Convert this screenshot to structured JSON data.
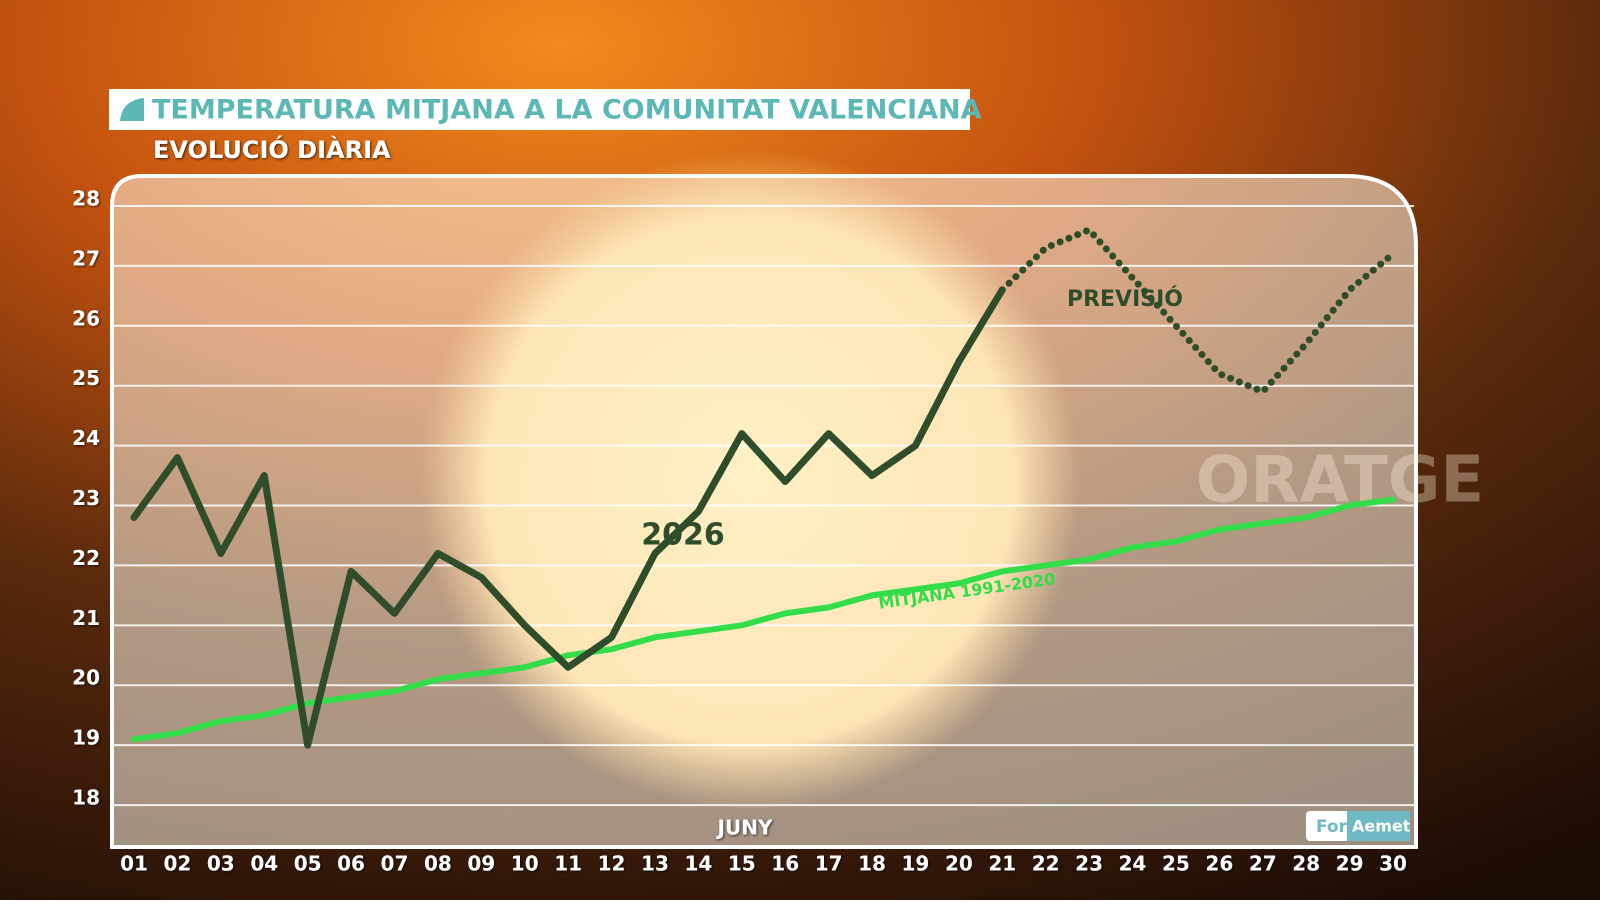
{
  "chart_data": {
    "type": "line",
    "title": "TEMPERATURA MITJANA  A LA COMUNITAT VALENCIANA",
    "subtitle": "EVOLUCIÓ DIÀRIA",
    "x_label": "JUNY",
    "watermark": "ORATGE",
    "source_prefix": "For",
    "source": "Aemet",
    "categories": [
      "01",
      "02",
      "03",
      "04",
      "05",
      "06",
      "07",
      "08",
      "09",
      "10",
      "11",
      "12",
      "13",
      "14",
      "15",
      "16",
      "17",
      "18",
      "19",
      "20",
      "21",
      "22",
      "23",
      "24",
      "25",
      "26",
      "27",
      "28",
      "29",
      "30"
    ],
    "series": [
      {
        "name": "2026",
        "color": "#2f4d2a",
        "style": "solid",
        "values": [
          22.8,
          23.8,
          22.2,
          23.5,
          19.0,
          21.9,
          21.2,
          22.2,
          21.8,
          21.0,
          20.3,
          20.8,
          22.2,
          22.9,
          24.2,
          23.4,
          24.2,
          23.5,
          24.0,
          25.4,
          26.6,
          null,
          null,
          null,
          null,
          null,
          null,
          null,
          null,
          null
        ]
      },
      {
        "name": "PREVISIÓ",
        "color": "#2f4d2a",
        "style": "dotted",
        "values": [
          null,
          null,
          null,
          null,
          null,
          null,
          null,
          null,
          null,
          null,
          null,
          null,
          null,
          null,
          null,
          null,
          null,
          null,
          null,
          null,
          26.6,
          27.3,
          27.6,
          26.8,
          26.0,
          25.2,
          24.9,
          25.7,
          26.6,
          27.2
        ]
      },
      {
        "name": "MITJANA 1991-2020",
        "color": "#33dd4a",
        "style": "solid",
        "values": [
          19.1,
          19.2,
          19.4,
          19.5,
          19.7,
          19.8,
          19.9,
          20.1,
          20.2,
          20.3,
          20.5,
          20.6,
          20.8,
          20.9,
          21.0,
          21.2,
          21.3,
          21.5,
          21.6,
          21.7,
          21.9,
          22.0,
          22.1,
          22.3,
          22.4,
          22.6,
          22.7,
          22.8,
          23.0,
          23.1
        ]
      }
    ],
    "ylim": [
      17.3,
      28.5
    ],
    "yticks": [
      18,
      19,
      20,
      21,
      22,
      23,
      24,
      25,
      26,
      27,
      28
    ],
    "grid": true
  }
}
